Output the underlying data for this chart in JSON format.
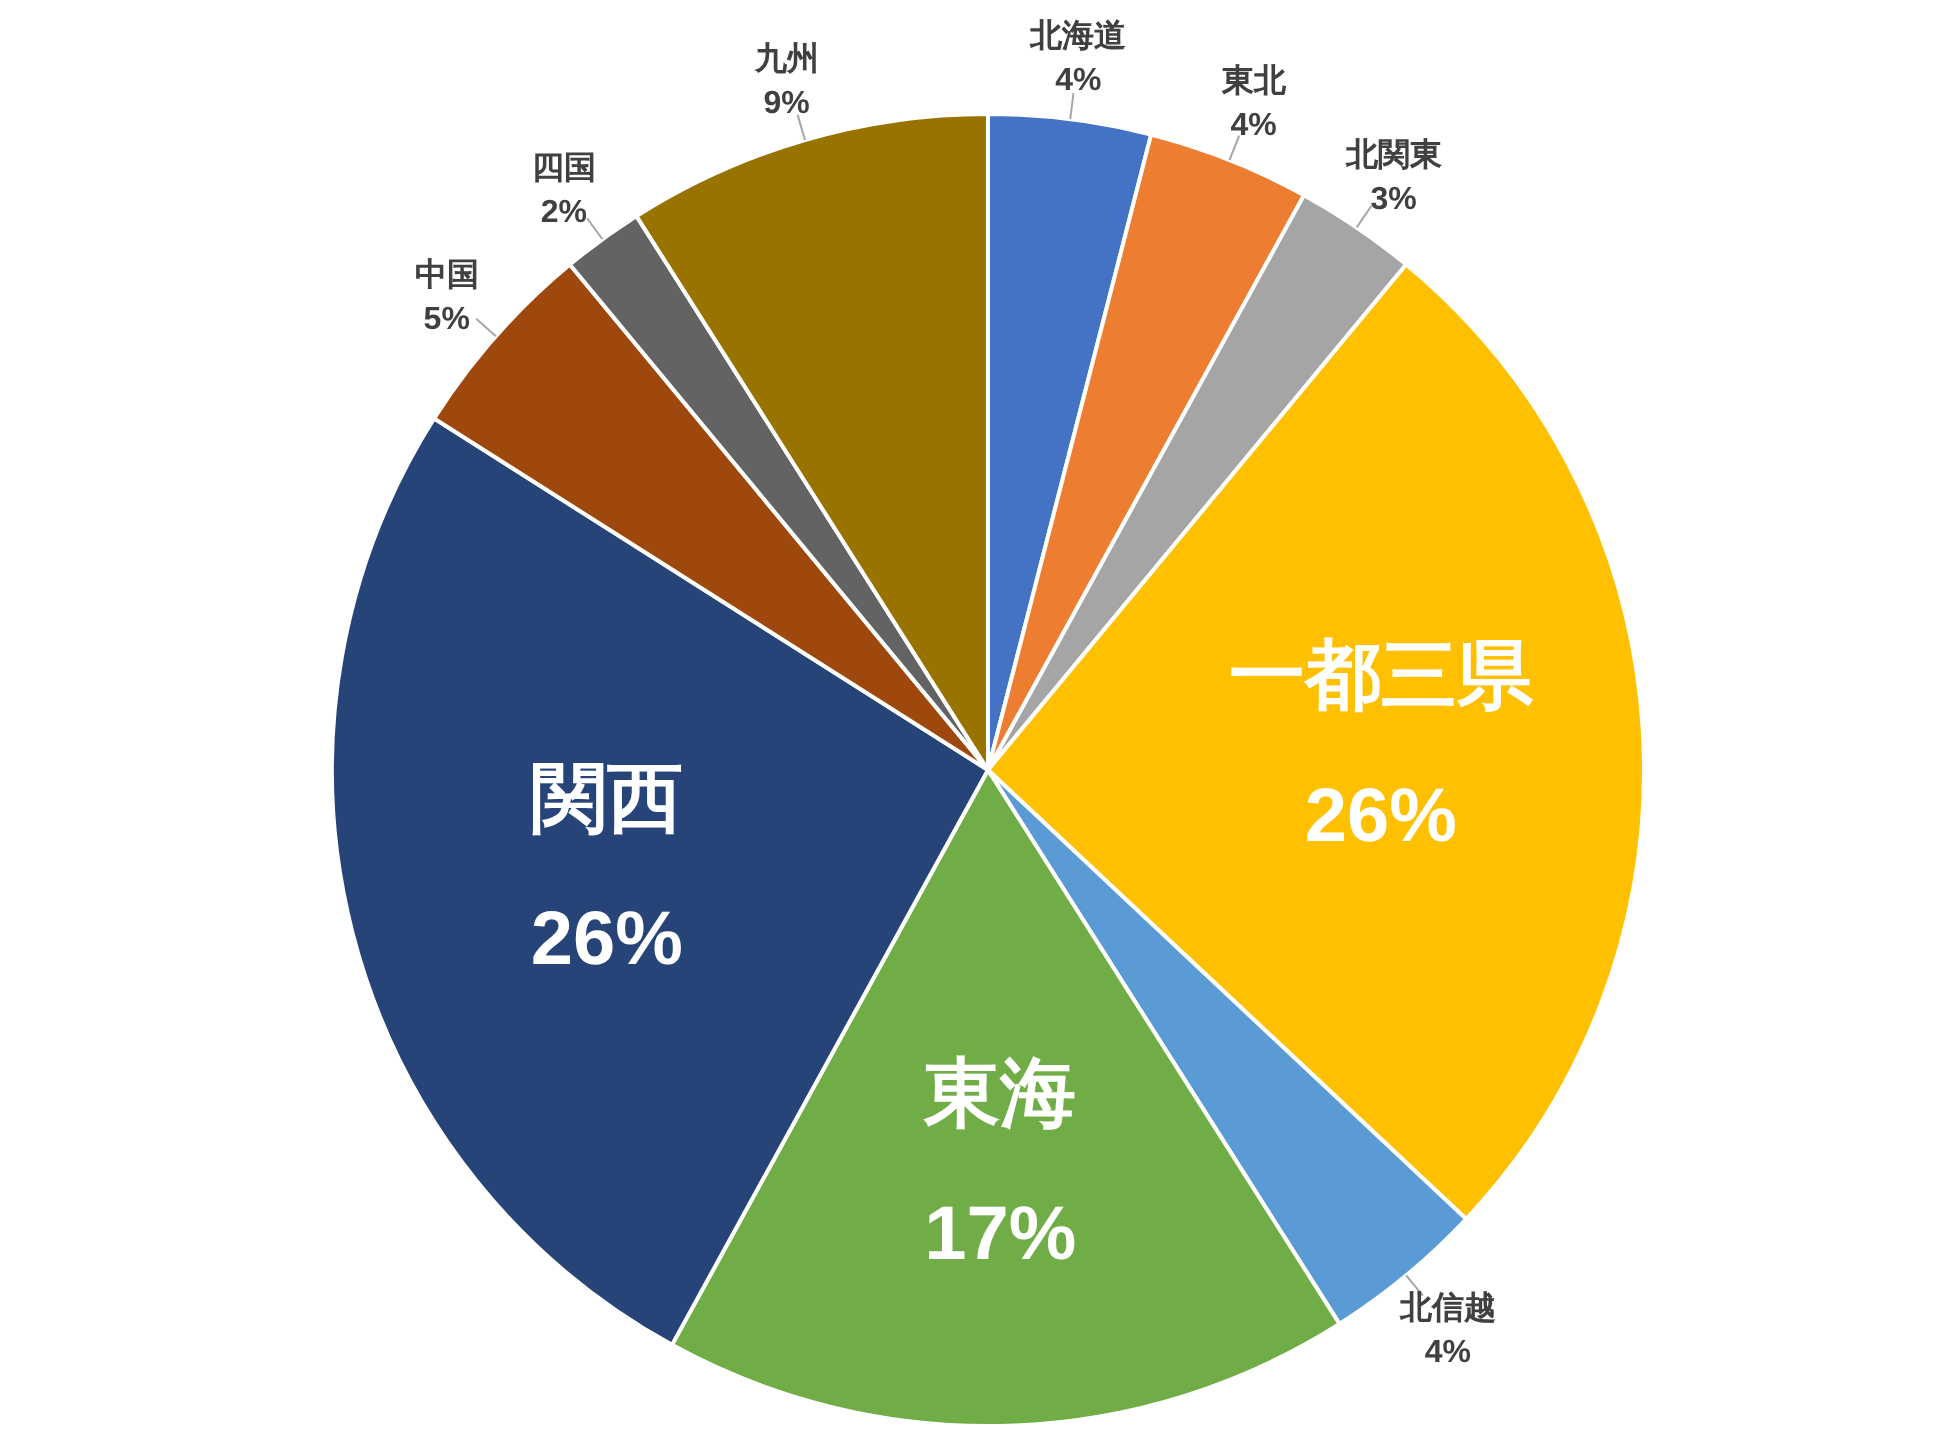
{
  "chart_data": {
    "type": "pie",
    "categories": [
      "北海道",
      "東北",
      "北関東",
      "一都三県",
      "北信越",
      "東海",
      "関西",
      "中国",
      "四国",
      "九州"
    ],
    "values": [
      4,
      4,
      3,
      26,
      4,
      17,
      26,
      5,
      2,
      9
    ],
    "colors": [
      "#4472c4",
      "#ed7d31",
      "#a5a5a5",
      "#ffc000",
      "#5b9bd5",
      "#70ad47",
      "#264478",
      "#9e480e",
      "#636363",
      "#997300"
    ],
    "value_labels": [
      "4%",
      "4%",
      "3%",
      "26%",
      "4%",
      "17%",
      "26%",
      "5%",
      "2%",
      "9%"
    ]
  }
}
